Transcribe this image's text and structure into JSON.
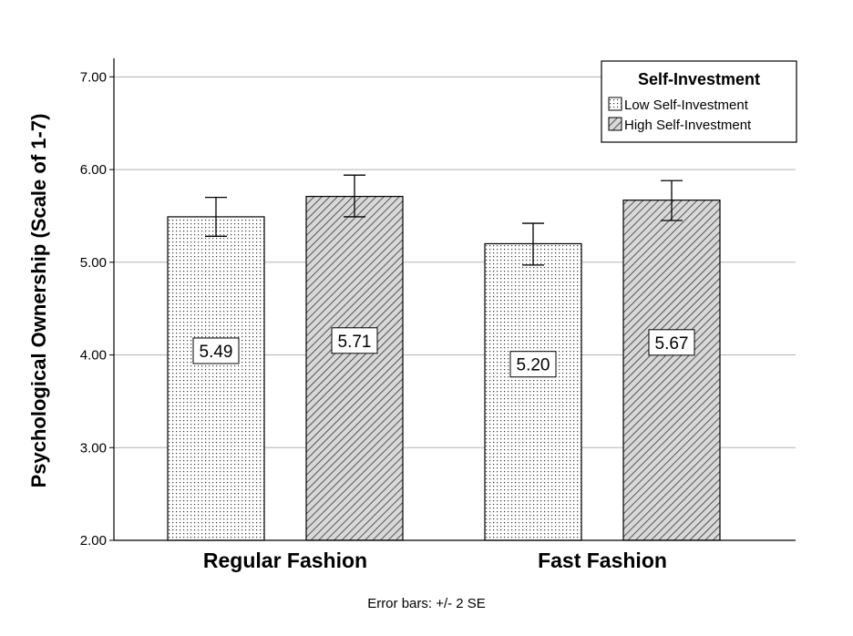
{
  "chart_data": {
    "type": "bar",
    "ylabel": "Psychological Ownership (Scale of 1-7)",
    "xlabel": "",
    "categories": [
      "Regular Fashion",
      "Fast Fashion"
    ],
    "ylim": [
      2.0,
      7.2
    ],
    "yticks": [
      2.0,
      3.0,
      4.0,
      5.0,
      6.0,
      7.0
    ],
    "ytick_labels": [
      "2.00",
      "3.00",
      "4.00",
      "5.00",
      "6.00",
      "7.00"
    ],
    "grid": true,
    "legend": {
      "title": "Self-Investment",
      "placement": "top-right"
    },
    "series": [
      {
        "name": "Low Self-Investment",
        "pattern": "dots",
        "values": [
          5.49,
          5.2
        ],
        "labels": [
          "5.49",
          "5.20"
        ],
        "err_low": [
          5.28,
          4.97
        ],
        "err_high": [
          5.7,
          5.42
        ]
      },
      {
        "name": "High Self-Investment",
        "pattern": "diagonal-hatch",
        "values": [
          5.71,
          5.67
        ],
        "labels": [
          "5.71",
          "5.67"
        ],
        "err_low": [
          5.49,
          5.45
        ],
        "err_high": [
          5.94,
          5.88
        ]
      }
    ],
    "footnote": "Error bars: +/- 2 SE",
    "colors": {
      "grid": "#b3b3b3",
      "bar_stroke": "#000000",
      "hatch_bg": "#d8d8d8",
      "hatch_line": "#333333",
      "dot_color": "#333333"
    }
  }
}
